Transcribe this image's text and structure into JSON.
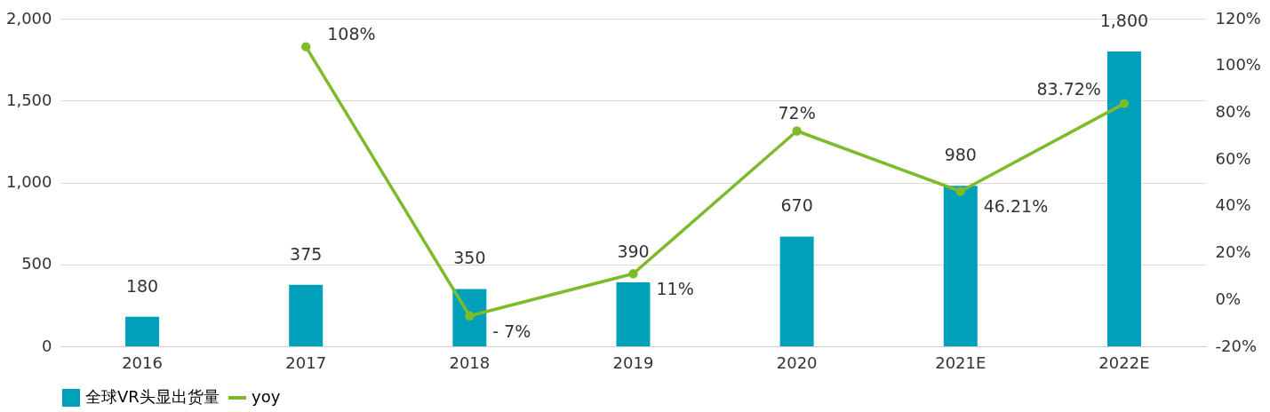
{
  "chart_data": {
    "type": "bar",
    "categories": [
      "2016",
      "2017",
      "2018",
      "2019",
      "2020",
      "2021E",
      "2022E"
    ],
    "series": [
      {
        "name": "全球VR头显出货量",
        "color": "#009fba",
        "values": [
          180,
          375,
          350,
          390,
          670,
          980,
          1800
        ],
        "value_labels": [
          "180",
          "375",
          "350",
          "390",
          "670",
          "980",
          "1,800"
        ]
      },
      {
        "name": "yoy",
        "type": "line",
        "axis": "y2",
        "color": "#7dbb2a",
        "values": [
          null,
          108,
          -7,
          11,
          72,
          46.21,
          83.72
        ],
        "value_labels": [
          null,
          "108%",
          "- 7%",
          "11%",
          "72%",
          "46.21%",
          "83.72%"
        ]
      }
    ],
    "ylim": [
      0,
      2000
    ],
    "yticks": [
      0,
      {
        "value": 500,
        "label": "500"
      },
      {
        "value": 1000,
        "label": "1,000"
      },
      {
        "value": 1500,
        "label": "1,500"
      },
      {
        "value": 2000,
        "label": "2,000"
      }
    ],
    "y2lim": [
      -20,
      120
    ],
    "y2ticks": [
      {
        "value": -20,
        "label": "-20%"
      },
      {
        "value": 0,
        "label": "0%"
      },
      {
        "value": 20,
        "label": "20%"
      },
      {
        "value": 40,
        "label": "40%"
      },
      {
        "value": 60,
        "label": "60%"
      },
      {
        "value": 80,
        "label": "80%"
      },
      {
        "value": 100,
        "label": "100%"
      },
      {
        "value": 120,
        "label": "120%"
      }
    ],
    "grid": "y",
    "legend": "bottom",
    "marker": "circle",
    "line_style": "solid"
  }
}
